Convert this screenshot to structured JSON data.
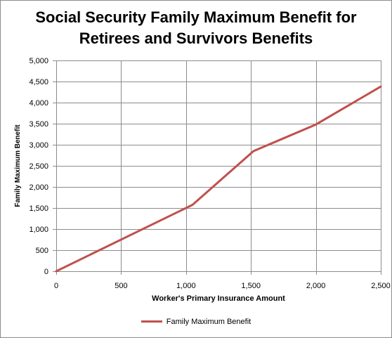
{
  "chart_data": {
    "type": "line",
    "title_line1": "Social Security Family Maximum Benefit for",
    "title_line2": "Retirees and Survivors Benefits",
    "xlabel": "Worker's Primary Insurance Amount",
    "ylabel": "Family Maximum Benefit",
    "xlim": [
      0,
      2500
    ],
    "ylim": [
      0,
      5000
    ],
    "x_ticks": [
      0,
      500,
      1000,
      1500,
      2000,
      2500
    ],
    "x_tick_labels": [
      "0",
      "500",
      "1,000",
      "1,500",
      "2,000",
      "2,500"
    ],
    "y_ticks": [
      0,
      500,
      1000,
      1500,
      2000,
      2500,
      3000,
      3500,
      4000,
      4500,
      5000
    ],
    "y_tick_labels": [
      "0",
      "500",
      "1,000",
      "1,500",
      "2,000",
      "2,500",
      "3,000",
      "3,500",
      "4,000",
      "4,500",
      "5,000"
    ],
    "grid": true,
    "legend_position": "bottom",
    "series": [
      {
        "name": "Family Maximum Benefit",
        "color": "#c0504d",
        "x": [
          0,
          1050,
          1520,
          2000,
          2500
        ],
        "y": [
          0,
          1575,
          2850,
          3480,
          4380
        ]
      }
    ]
  }
}
